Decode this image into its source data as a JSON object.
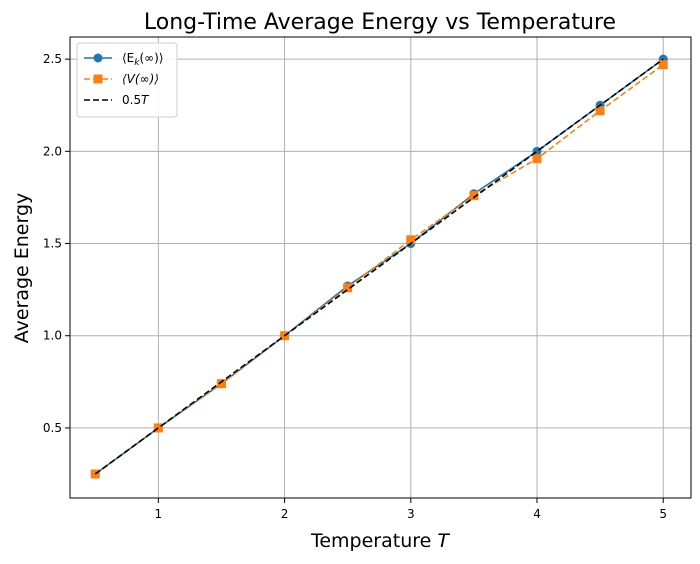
{
  "chart_data": {
    "type": "line",
    "title": "Long-Time Average Energy vs Temperature",
    "xlabel_text": "Temperature ",
    "xlabel_var": "T",
    "ylabel": "Average Energy",
    "xlim": [
      0.3,
      5.22
    ],
    "ylim": [
      0.12,
      2.62
    ],
    "grid": true,
    "legend_position": "top-left",
    "x_ticks": [
      1,
      2,
      3,
      4,
      5
    ],
    "x_tick_labels": [
      "1",
      "2",
      "3",
      "4",
      "5"
    ],
    "y_ticks": [
      0.5,
      1.0,
      1.5,
      2.0,
      2.5
    ],
    "y_tick_labels": [
      "0.5",
      "1.0",
      "1.5",
      "2.0",
      "2.5"
    ],
    "x": [
      0.5,
      1.0,
      1.5,
      2.0,
      2.5,
      3.0,
      3.5,
      4.0,
      4.5,
      5.0
    ],
    "series": [
      {
        "name": "⟨E_k(∞)⟩",
        "legend_main": "⟨E",
        "legend_sub": "k",
        "legend_tail": "(∞)⟩",
        "values": [
          0.25,
          0.5,
          0.74,
          1.0,
          1.27,
          1.5,
          1.77,
          2.0,
          2.25,
          2.5
        ],
        "color": "#1f77b4",
        "marker": "circle",
        "dash": "solid"
      },
      {
        "name": "⟨V(∞)⟩",
        "legend_main": "⟨V(∞)⟩",
        "legend_sub": "",
        "legend_tail": "",
        "values": [
          0.25,
          0.5,
          0.74,
          1.0,
          1.26,
          1.52,
          1.76,
          1.96,
          2.22,
          2.47
        ],
        "color": "#ff7f0e",
        "marker": "square",
        "dash": "dashed"
      },
      {
        "name": "0.5T",
        "legend_main": "0.5",
        "legend_sub": "",
        "legend_tail": "T",
        "values": [
          0.25,
          0.5,
          0.75,
          1.0,
          1.25,
          1.5,
          1.75,
          2.0,
          2.25,
          2.5
        ],
        "color": "#000000",
        "marker": "none",
        "dash": "dashed"
      }
    ]
  }
}
